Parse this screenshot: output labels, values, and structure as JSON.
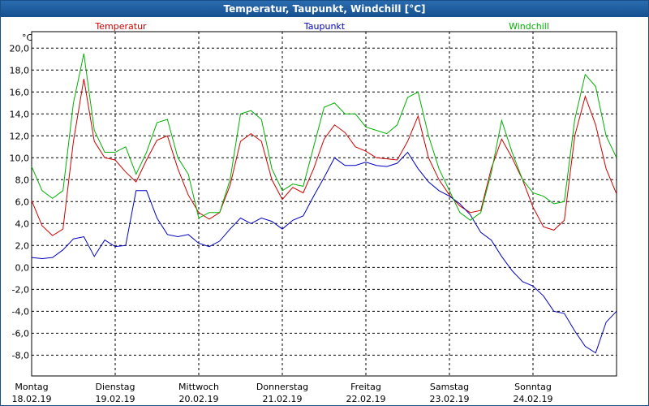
{
  "chart_data": {
    "type": "line",
    "title": "Temperatur, Taupunkt, Windchill [°C]",
    "y_unit": "°C",
    "x": [
      0,
      3,
      6,
      9,
      12,
      15,
      18,
      21,
      24,
      27,
      30,
      33,
      36,
      39,
      42,
      45,
      48,
      51,
      54,
      57,
      60,
      63,
      66,
      69,
      72,
      75,
      78,
      81,
      84,
      87,
      90,
      93,
      96,
      99,
      102,
      105,
      108,
      111,
      114,
      117,
      120,
      123,
      126,
      129,
      132,
      135,
      138,
      141,
      144,
      147,
      150,
      153,
      156,
      159,
      162,
      165,
      168
    ],
    "xlim": [
      0,
      168
    ],
    "xticks": [
      {
        "value": 0,
        "label": "Montag"
      },
      {
        "value": 24,
        "label": "Dienstag"
      },
      {
        "value": 48,
        "label": "Mittwoch"
      },
      {
        "value": 72,
        "label": "Donnerstag"
      },
      {
        "value": 96,
        "label": "Freitag"
      },
      {
        "value": 120,
        "label": "Samstag"
      },
      {
        "value": 144,
        "label": "Sonntag"
      }
    ],
    "xtick_dates": [
      "18.02.19",
      "19.02.19",
      "20.02.19",
      "21.02.19",
      "22.02.19",
      "23.02.19",
      "24.02.19"
    ],
    "ylim": [
      -9.9,
      21.5
    ],
    "yticks": [
      {
        "value": -8,
        "label": "-8,0"
      },
      {
        "value": -6,
        "label": "-6,0"
      },
      {
        "value": -4,
        "label": "-4,0"
      },
      {
        "value": -2,
        "label": "-2,0"
      },
      {
        "value": 0,
        "label": "0,0"
      },
      {
        "value": 2,
        "label": "2,0"
      },
      {
        "value": 4,
        "label": "4,0"
      },
      {
        "value": 6,
        "label": "6,0"
      },
      {
        "value": 8,
        "label": "8,0"
      },
      {
        "value": 10,
        "label": "10,0"
      },
      {
        "value": 12,
        "label": "12,0"
      },
      {
        "value": 14,
        "label": "14,0"
      },
      {
        "value": 16,
        "label": "16,0"
      },
      {
        "value": 18,
        "label": "18,0"
      },
      {
        "value": 20,
        "label": "20,0"
      }
    ],
    "grid": true,
    "series": [
      {
        "name": "Temperatur",
        "color": "#d00000",
        "values": [
          6.1,
          3.8,
          2.9,
          3.5,
          11.5,
          17.2,
          11.5,
          10.0,
          9.8,
          8.7,
          7.8,
          9.8,
          11.6,
          12.0,
          9.0,
          6.6,
          5.0,
          4.4,
          5.0,
          7.5,
          11.5,
          12.2,
          11.5,
          8.0,
          6.2,
          7.3,
          6.8,
          9.0,
          11.7,
          13.0,
          12.3,
          11.0,
          10.6,
          10.0,
          9.9,
          9.8,
          11.5,
          13.8,
          10.0,
          8.0,
          6.6,
          5.6,
          5.0,
          5.2,
          9.0,
          11.7,
          10.0,
          8.0,
          5.5,
          3.7,
          3.4,
          4.3,
          12.0,
          15.6,
          13.0,
          9.0,
          6.7
        ]
      },
      {
        "name": "Taupunkt",
        "color": "#0000c0",
        "values": [
          0.9,
          0.8,
          0.9,
          1.6,
          2.6,
          2.8,
          1.0,
          2.5,
          1.9,
          2.0,
          7.0,
          7.0,
          4.5,
          3.0,
          2.8,
          3.0,
          2.2,
          1.9,
          2.4,
          3.5,
          4.5,
          4.0,
          4.5,
          4.2,
          3.5,
          4.3,
          4.7,
          6.5,
          8.2,
          10.0,
          9.3,
          9.3,
          9.6,
          9.3,
          9.2,
          9.5,
          10.5,
          9.0,
          7.8,
          7.0,
          6.5,
          5.8,
          4.8,
          3.2,
          2.5,
          1.0,
          -0.3,
          -1.3,
          -1.7,
          -2.6,
          -4.0,
          -4.2,
          -5.8,
          -7.2,
          -7.8,
          -5.0,
          -4.0
        ]
      },
      {
        "name": "Windchill",
        "color": "#00b000",
        "values": [
          9.2,
          7.0,
          6.3,
          7.0,
          15.0,
          19.5,
          12.5,
          10.5,
          10.5,
          11.0,
          8.5,
          10.5,
          13.2,
          13.5,
          10.0,
          8.5,
          4.5,
          5.0,
          5.0,
          8.0,
          14.0,
          14.3,
          13.5,
          9.0,
          7.0,
          7.6,
          7.4,
          11.0,
          14.6,
          15.0,
          14.0,
          14.0,
          12.8,
          12.5,
          12.2,
          13.0,
          15.5,
          16.0,
          12.0,
          9.0,
          7.0,
          5.0,
          4.3,
          5.0,
          8.6,
          13.4,
          10.5,
          8.0,
          6.8,
          6.5,
          5.8,
          6.0,
          13.5,
          17.6,
          16.5,
          12.0,
          10.0
        ]
      }
    ]
  }
}
